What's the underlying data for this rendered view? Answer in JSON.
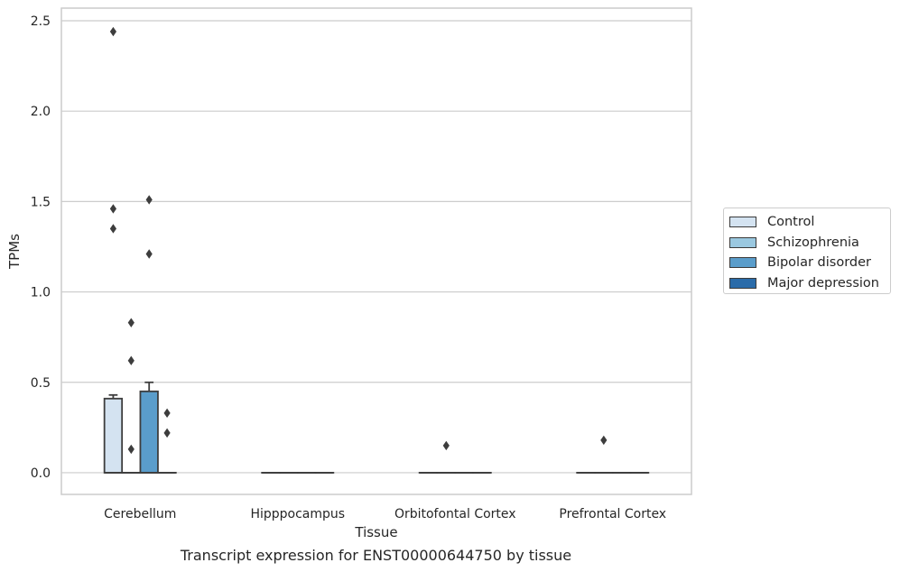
{
  "caption": "Transcript expression for ENST00000644750 by tissue",
  "chart_data": {
    "type": "box",
    "xlabel": "Tissue",
    "ylabel": "TPMs",
    "ylim": [
      -0.12,
      2.57
    ],
    "yticks": [
      0.0,
      0.5,
      1.0,
      1.5,
      2.0,
      2.5
    ],
    "ytick_labels": [
      "0.0",
      "0.5",
      "1.0",
      "1.5",
      "2.0",
      "2.5"
    ],
    "categories": [
      "Cerebellum",
      "Hipppocampus",
      "Orbitofontal Cortex",
      "Prefrontal Cortex"
    ],
    "grid": true,
    "legend_position": "right",
    "series": [
      {
        "name": "Control",
        "color": "#d4e3f1",
        "boxes": [
          {
            "q1": 0.0,
            "median": 0.0,
            "q3": 0.41,
            "whislo": 0.0,
            "whishi": 0.43,
            "fliers": [
              2.44,
              1.46,
              1.35
            ]
          },
          {
            "q1": 0.0,
            "median": 0.0,
            "q3": 0.0,
            "whislo": 0.0,
            "whishi": 0.0,
            "fliers": []
          },
          {
            "q1": 0.0,
            "median": 0.0,
            "q3": 0.0,
            "whislo": 0.0,
            "whishi": 0.0,
            "fliers": []
          },
          {
            "q1": 0.0,
            "median": 0.0,
            "q3": 0.0,
            "whislo": 0.0,
            "whishi": 0.0,
            "fliers": []
          }
        ]
      },
      {
        "name": "Schizophrenia",
        "color": "#9ac8e0",
        "boxes": [
          {
            "q1": 0.0,
            "median": 0.0,
            "q3": 0.0,
            "whislo": 0.0,
            "whishi": 0.0,
            "fliers": [
              0.83,
              0.62,
              0.13
            ]
          },
          {
            "q1": 0.0,
            "median": 0.0,
            "q3": 0.0,
            "whislo": 0.0,
            "whishi": 0.0,
            "fliers": []
          },
          {
            "q1": 0.0,
            "median": 0.0,
            "q3": 0.0,
            "whislo": 0.0,
            "whishi": 0.0,
            "fliers": [
              0.15
            ]
          },
          {
            "q1": 0.0,
            "median": 0.0,
            "q3": 0.0,
            "whislo": 0.0,
            "whishi": 0.0,
            "fliers": [
              0.18
            ]
          }
        ]
      },
      {
        "name": "Bipolar disorder",
        "color": "#5a9dcb",
        "boxes": [
          {
            "q1": 0.0,
            "median": 0.0,
            "q3": 0.45,
            "whislo": 0.0,
            "whishi": 0.5,
            "fliers": [
              1.51,
              1.21
            ]
          },
          {
            "q1": 0.0,
            "median": 0.0,
            "q3": 0.0,
            "whislo": 0.0,
            "whishi": 0.0,
            "fliers": []
          },
          {
            "q1": 0.0,
            "median": 0.0,
            "q3": 0.0,
            "whislo": 0.0,
            "whishi": 0.0,
            "fliers": []
          },
          {
            "q1": 0.0,
            "median": 0.0,
            "q3": 0.0,
            "whislo": 0.0,
            "whishi": 0.0,
            "fliers": []
          }
        ]
      },
      {
        "name": "Major depression",
        "color": "#2a6ba9",
        "boxes": [
          {
            "q1": 0.0,
            "median": 0.0,
            "q3": 0.0,
            "whislo": 0.0,
            "whishi": 0.0,
            "fliers": [
              0.33,
              0.22
            ]
          },
          {
            "q1": 0.0,
            "median": 0.0,
            "q3": 0.0,
            "whislo": 0.0,
            "whishi": 0.0,
            "fliers": []
          },
          {
            "q1": 0.0,
            "median": 0.0,
            "q3": 0.0,
            "whislo": 0.0,
            "whishi": 0.0,
            "fliers": []
          },
          {
            "q1": 0.0,
            "median": 0.0,
            "q3": 0.0,
            "whislo": 0.0,
            "whishi": 0.0,
            "fliers": []
          }
        ]
      }
    ]
  }
}
